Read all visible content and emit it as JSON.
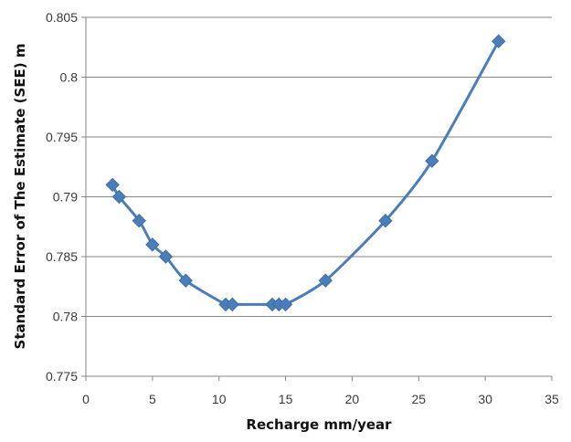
{
  "chart_data": {
    "type": "line",
    "title": "",
    "xlabel": "Recharge mm/year",
    "ylabel": "Standard Error of The Estimate (SEE) m",
    "xlim": [
      0,
      35
    ],
    "ylim": [
      0.775,
      0.805
    ],
    "x_ticks": [
      "0",
      "5",
      "10",
      "15",
      "20",
      "25",
      "30",
      "35"
    ],
    "y_ticks": [
      "0.775",
      "0.78",
      "0.785",
      "0.79",
      "0.795",
      "0.8",
      "0.805"
    ],
    "grid": "horizontal",
    "legend": "none",
    "marker": "diamond",
    "smooth": true,
    "color": "#4a7ebb",
    "series": [
      {
        "x": [
          2,
          2.5,
          4,
          5,
          6,
          7.5,
          10.5,
          11,
          14,
          14.5,
          15,
          18,
          22.5,
          26,
          31
        ],
        "y": [
          0.791,
          0.79,
          0.788,
          0.786,
          0.785,
          0.783,
          0.781,
          0.781,
          0.781,
          0.781,
          0.781,
          0.783,
          0.788,
          0.793,
          0.803
        ]
      }
    ]
  }
}
